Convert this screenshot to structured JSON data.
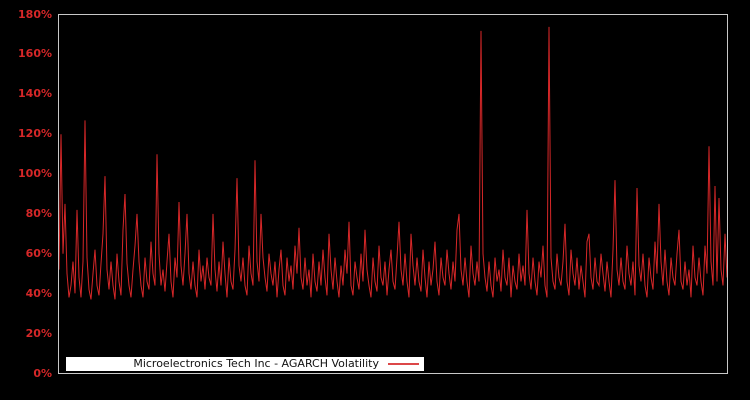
{
  "colors": {
    "background": "#000000",
    "plot_border": "#c8c8c8",
    "axis_label": "#d62728",
    "line": "#d62728",
    "legend_background": "#ffffff",
    "legend_text": "#111111"
  },
  "legend": {
    "position": "lower-left"
  },
  "chart_data": {
    "type": "line",
    "xlabel": "",
    "ylabel": "",
    "ylim": [
      0,
      180
    ],
    "y_unit": "percent",
    "grid": false,
    "x_axis_labels_visible": false,
    "ytick_values": [
      0,
      20,
      40,
      60,
      80,
      100,
      120,
      140,
      160,
      180
    ],
    "ytick_labels": [
      "0%",
      "20%",
      "40%",
      "60%",
      "80%",
      "100%",
      "120%",
      "140%",
      "160%",
      "180%"
    ],
    "series": [
      {
        "name": "Microelectronics Tech Inc - AGARCH Volatility",
        "color": "#d62728",
        "values_percent": [
          52,
          120,
          60,
          85,
          50,
          38,
          44,
          56,
          40,
          82,
          48,
          38,
          56,
          127,
          58,
          42,
          37,
          50,
          62,
          44,
          39,
          55,
          70,
          99,
          52,
          42,
          56,
          44,
          37,
          60,
          46,
          39,
          72,
          90,
          55,
          44,
          38,
          52,
          64,
          80,
          56,
          44,
          38,
          58,
          46,
          42,
          66,
          50,
          44,
          110,
          60,
          44,
          52,
          41,
          56,
          70,
          46,
          38,
          58,
          48,
          86,
          54,
          44,
          60,
          80,
          50,
          42,
          56,
          44,
          38,
          62,
          46,
          54,
          42,
          58,
          48,
          44,
          80,
          52,
          41,
          56,
          44,
          66,
          50,
          38,
          58,
          46,
          42,
          62,
          98,
          54,
          46,
          58,
          44,
          39,
          64,
          50,
          44,
          107,
          56,
          46,
          80,
          58,
          48,
          41,
          60,
          50,
          44,
          56,
          38,
          52,
          62,
          44,
          39,
          58,
          46,
          54,
          42,
          64,
          50,
          73,
          48,
          42,
          58,
          44,
          52,
          38,
          60,
          46,
          41,
          56,
          44,
          62,
          48,
          39,
          70,
          52,
          42,
          58,
          46,
          38,
          54,
          44,
          62,
          50,
          76,
          44,
          39,
          56,
          48,
          42,
          60,
          46,
          72,
          52,
          44,
          38,
          58,
          46,
          41,
          64,
          48,
          44,
          56,
          39,
          52,
          62,
          46,
          42,
          58,
          76,
          52,
          44,
          60,
          46,
          38,
          70,
          54,
          44,
          58,
          46,
          41,
          62,
          48,
          38,
          56,
          44,
          52,
          66,
          46,
          39,
          58,
          48,
          44,
          62,
          50,
          42,
          56,
          46,
          72,
          80,
          52,
          44,
          58,
          46,
          38,
          64,
          50,
          44,
          56,
          46,
          172,
          60,
          48,
          41,
          56,
          44,
          38,
          58,
          46,
          52,
          41,
          62,
          48,
          44,
          58,
          38,
          54,
          46,
          42,
          60,
          46,
          54,
          44,
          82,
          50,
          42,
          58,
          46,
          39,
          56,
          48,
          64,
          44,
          38,
          174,
          58,
          46,
          42,
          60,
          48,
          44,
          56,
          75,
          46,
          39,
          62,
          50,
          44,
          58,
          42,
          54,
          46,
          38,
          66,
          70,
          48,
          42,
          58,
          46,
          44,
          60,
          50,
          41,
          56,
          46,
          38,
          62,
          97,
          52,
          44,
          58,
          46,
          42,
          64,
          50,
          44,
          56,
          39,
          93,
          54,
          46,
          60,
          44,
          38,
          58,
          48,
          42,
          66,
          50,
          85,
          56,
          44,
          62,
          46,
          39,
          58,
          48,
          44,
          60,
          72,
          46,
          42,
          56,
          44,
          52,
          38,
          64,
          48,
          44,
          58,
          46,
          39,
          64,
          50,
          114,
          56,
          44,
          94,
          46,
          88,
          52,
          44,
          70,
          48
        ]
      }
    ]
  }
}
